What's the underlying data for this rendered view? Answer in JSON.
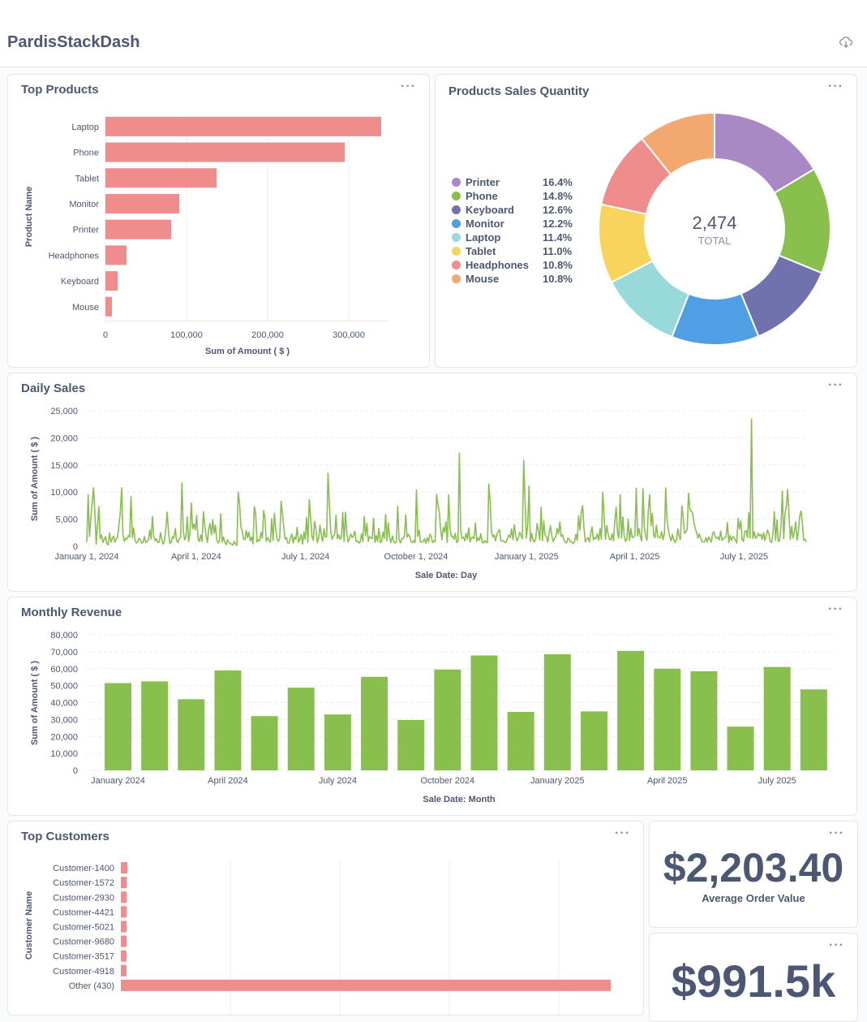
{
  "header": {
    "title": "PardisStackDash",
    "download_icon": "cloud-download-icon"
  },
  "menu_label": "···",
  "top_products": {
    "title": "Top Products",
    "chart_data": {
      "type": "bar",
      "orientation": "horizontal",
      "categories": [
        "Laptop",
        "Phone",
        "Tablet",
        "Monitor",
        "Printer",
        "Headphones",
        "Keyboard",
        "Mouse"
      ],
      "values": [
        340000,
        295000,
        137000,
        91000,
        81000,
        26000,
        15000,
        8000
      ],
      "xlabel": "Sum of Amount ( $ )",
      "ylabel": "Product Name",
      "xticks": [
        0,
        100000,
        200000,
        300000
      ],
      "xtick_labels": [
        "0",
        "100,000",
        "200,000",
        "300,000"
      ],
      "xlim": [
        0,
        350000
      ],
      "color": "#ef8c8c"
    }
  },
  "sales_quantity": {
    "title": "Products Sales Quantity",
    "total_value": "2,474",
    "total_label": "TOTAL",
    "chart_data": {
      "type": "pie",
      "donut": true,
      "categories": [
        "Printer",
        "Phone",
        "Keyboard",
        "Monitor",
        "Laptop",
        "Tablet",
        "Headphones",
        "Mouse"
      ],
      "percent_labels": [
        "16.4%",
        "14.8%",
        "12.6%",
        "12.2%",
        "11.4%",
        "11.0%",
        "10.8%",
        "10.8%"
      ],
      "values": [
        16.4,
        14.8,
        12.6,
        12.2,
        11.4,
        11.0,
        10.8,
        10.8
      ],
      "colors": [
        "#a989c5",
        "#88bf4d",
        "#7172ad",
        "#509ee3",
        "#98d9d9",
        "#f9d45c",
        "#ef8c8c",
        "#f2a86f"
      ],
      "total": "2,474"
    }
  },
  "daily_sales": {
    "title": "Daily Sales",
    "chart_data": {
      "type": "line",
      "xlabel": "Sale Date: Day",
      "ylabel": "Sum of Amount ( $ )",
      "ylim": [
        0,
        25000
      ],
      "yticks": [
        0,
        5000,
        10000,
        15000,
        20000,
        25000
      ],
      "ytick_labels": [
        "0",
        "5,000",
        "10,000",
        "15,000",
        "20,000",
        "25,000"
      ],
      "xtick_labels": [
        "January 1, 2024",
        "April 1, 2024",
        "July 1, 2024",
        "October 1, 2024",
        "January 1, 2025",
        "April 1, 2025",
        "July 1, 2025"
      ],
      "xtick_days": [
        0,
        91,
        182,
        274,
        366,
        456,
        547
      ],
      "x_range_days": [
        0,
        600
      ],
      "values": [
        800,
        9500,
        1800,
        5200,
        7800,
        10800,
        6500,
        400,
        3800,
        7300,
        1400,
        2100,
        700,
        1300,
        1800,
        400,
        300,
        2500,
        800,
        1400,
        1900,
        800,
        1300,
        1800,
        3900,
        6200,
        10800,
        2100,
        900,
        1500,
        1300,
        2000,
        1700,
        9200,
        1600,
        3400,
        1100,
        600,
        800,
        1500,
        1200,
        600,
        700,
        1800,
        700,
        900,
        1200,
        3000,
        1300,
        5500,
        1800,
        1000,
        1400,
        700,
        800,
        2500,
        1200,
        400,
        1100,
        3400,
        6300,
        2600,
        500,
        800,
        1800,
        1500,
        3300,
        1100,
        700,
        1400,
        1600,
        11700,
        2800,
        1200,
        1800,
        5400,
        900,
        2300,
        8000,
        3200,
        4100,
        3000,
        5700,
        1400,
        900,
        2100,
        900,
        6400,
        3800,
        2000,
        700,
        3300,
        4200,
        2100,
        4900,
        2400,
        3900,
        1200,
        600,
        1000,
        6000,
        800,
        1700,
        800,
        300,
        1200,
        700,
        500,
        400,
        200,
        900,
        400,
        200,
        10000,
        8000,
        3600,
        2800,
        1400,
        1200,
        2900,
        1600,
        2600,
        1000,
        1700,
        500,
        7300,
        6100,
        800,
        1200,
        1000,
        2600,
        1500,
        6600,
        5000,
        900,
        1600,
        1200,
        700,
        5100,
        1100,
        6100,
        3100,
        1400,
        900,
        1500,
        8300,
        6000,
        3500,
        1300,
        1600,
        600,
        600,
        1500,
        2300,
        600,
        1700,
        1300,
        3500,
        700,
        1300,
        2200,
        400,
        2600,
        1300,
        5300,
        700,
        8600,
        5300,
        1900,
        1100,
        4600,
        3100,
        700,
        1500,
        3900,
        2000,
        900,
        3200,
        1700,
        1800,
        13500,
        7800,
        2800,
        1300,
        1800,
        2300,
        5700,
        1400,
        2100,
        1300,
        1700,
        6200,
        900,
        6300,
        2500,
        800,
        1400,
        2300,
        1600,
        1900,
        2800,
        900,
        1000,
        600,
        800,
        2300,
        900,
        5500,
        2000,
        4200,
        900,
        1800,
        1600,
        1400,
        5200,
        700,
        2000,
        900,
        3300,
        700,
        900,
        2600,
        1400,
        5900,
        1000,
        4300,
        1600,
        700,
        1900,
        900,
        600,
        800,
        7400,
        1300,
        600,
        1400,
        1400,
        1900,
        5800,
        1700,
        2200,
        1800,
        800,
        700,
        1100,
        700,
        10400,
        1800,
        3000,
        800,
        800,
        900,
        1400,
        600,
        1600,
        800,
        2200,
        1800,
        700,
        1000,
        900,
        9600,
        7800,
        6400,
        3200,
        1200,
        3500,
        2600,
        4500,
        700,
        9500,
        3400,
        1800,
        1900,
        1300,
        2400,
        700,
        900,
        17200,
        3000,
        1500,
        1700,
        1000,
        2400,
        1300,
        3400,
        800,
        1600,
        1700,
        1400,
        4300,
        900,
        1600,
        1100,
        2300,
        800,
        600,
        1100,
        700,
        700,
        11500,
        8000,
        2600,
        1700,
        2100,
        1000,
        2200,
        2700,
        3100,
        1000,
        1000,
        1000,
        700,
        800,
        1500,
        2100,
        1600,
        3200,
        1200,
        4000,
        2000,
        1000,
        1500,
        2600,
        2000,
        1400,
        15900,
        8800,
        1500,
        3800,
        11100,
        900,
        2400,
        1100,
        800,
        1400,
        4200,
        2800,
        1200,
        7200,
        1000,
        4700,
        2000,
        1800,
        800,
        2400,
        3800,
        1900,
        900,
        1500,
        1800,
        3300,
        2300,
        4500,
        1800,
        2100,
        1200,
        800,
        600,
        1500,
        1300,
        900,
        800,
        500,
        900,
        2200,
        1100,
        5600,
        3000,
        6200,
        7500,
        3400,
        800,
        1400,
        1600,
        800,
        2400,
        3600,
        1200,
        1600,
        1400,
        2300,
        1100,
        3300,
        1300,
        10000,
        5400,
        1300,
        3800,
        2300,
        1300,
        1200,
        2300,
        1000,
        4700,
        7200,
        2500,
        1500,
        9500,
        1500,
        5400,
        1900,
        900,
        1300,
        5000,
        1100,
        3300,
        1600,
        1700,
        2000,
        10700,
        1900,
        3300,
        1900,
        1000,
        10600,
        3500,
        1900,
        1100,
        6700,
        9500,
        3800,
        6100,
        2000,
        1600,
        3900,
        1800,
        1600,
        1600,
        2700,
        1200,
        2300,
        10800,
        4800,
        3200,
        1700,
        1000,
        2200,
        1200,
        700,
        1200,
        3200,
        1900,
        1300,
        7500,
        5500,
        2400,
        2700,
        3100,
        9800,
        6900,
        6500,
        6200,
        4500,
        3300,
        2600,
        1500,
        2300,
        1500,
        900,
        800,
        800,
        1600,
        800,
        1700,
        1300,
        800,
        2400,
        2700,
        1700,
        1500,
        1700,
        1200,
        2800,
        1100,
        1400,
        1500,
        1800,
        4400,
        700,
        2000,
        1100,
        1800,
        1600,
        1100,
        600,
        5200,
        3200,
        4700,
        1300,
        900,
        2700,
        2900,
        1600,
        6200,
        1500,
        23500,
        1400,
        2700,
        1500,
        1700,
        2400,
        1900,
        2200,
        1300,
        2500,
        1100,
        2000,
        3000,
        2300,
        900,
        700,
        2200,
        6400,
        1100,
        4900,
        900,
        1100,
        3800,
        10200,
        1400,
        6000,
        7500,
        10500,
        5600,
        1300,
        3700,
        1500,
        2700,
        4500,
        1100,
        2700,
        5600,
        6500,
        4200,
        1100,
        1300,
        800
      ]
    }
  },
  "monthly_revenue": {
    "title": "Monthly Revenue",
    "chart_data": {
      "type": "bar",
      "categories": [
        "Jan 2024",
        "Feb 2024",
        "Mar 2024",
        "Apr 2024",
        "May 2024",
        "Jun 2024",
        "Jul 2024",
        "Aug 2024",
        "Sep 2024",
        "Oct 2024",
        "Nov 2024",
        "Dec 2024",
        "Jan 2025",
        "Feb 2025",
        "Mar 2025",
        "Apr 2025",
        "May 2025",
        "Jun 2025",
        "Jul 2025",
        "Aug 2025"
      ],
      "values": [
        51500,
        52500,
        42000,
        59000,
        32000,
        48800,
        33000,
        55200,
        29700,
        59500,
        67800,
        34500,
        68500,
        34800,
        70500,
        60000,
        58500,
        25800,
        61000,
        47800
      ],
      "xtick_labels": [
        "January 2024",
        "April 2024",
        "July 2024",
        "October 2024",
        "January 2025",
        "April 2025",
        "July 2025"
      ],
      "xtick_indices": [
        0,
        3,
        6,
        9,
        12,
        15,
        18
      ],
      "xlabel": "Sale Date: Month",
      "ylabel": "Sum of Amount ( $ )",
      "ylim": [
        0,
        80000
      ],
      "yticks": [
        0,
        10000,
        20000,
        30000,
        40000,
        50000,
        60000,
        70000,
        80000
      ],
      "ytick_labels": [
        "0",
        "10,000",
        "20,000",
        "30,000",
        "40,000",
        "50,000",
        "60,000",
        "70,000",
        "80,000"
      ],
      "color": "#88bf4d"
    }
  },
  "top_customers": {
    "title": "Top Customers",
    "chart_data": {
      "type": "bar",
      "orientation": "horizontal",
      "categories": [
        "Customer-1400",
        "Customer-1572",
        "Customer-2930",
        "Customer-4421",
        "Customer-5021",
        "Customer-9680",
        "Customer-3517",
        "Customer-4918",
        "Other (430)"
      ],
      "values": [
        11800,
        11000,
        10900,
        10800,
        10700,
        10600,
        10500,
        10400,
        894800
      ],
      "ylabel": "Customer Name",
      "xlim": [
        0,
        920000
      ],
      "grid_values": [
        200000,
        400000,
        600000,
        800000
      ],
      "color": "#ef8c8c"
    }
  },
  "avg_order": {
    "value": "$2,203.40",
    "label": "Average Order Value"
  },
  "total_revenue": {
    "value": "$991.5k"
  }
}
